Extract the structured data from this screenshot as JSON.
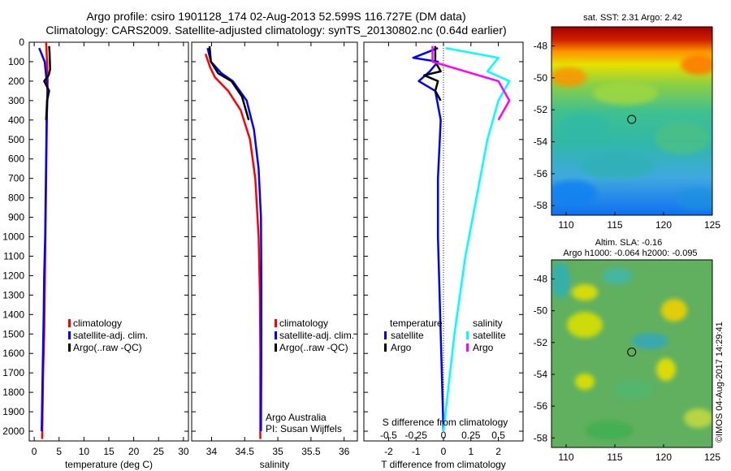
{
  "titles": {
    "line1": "Argo profile: csiro 1901128_174 02-Aug-2013 52.599S 116.727E (DM data)",
    "line2": "Climatology: CARS2009. Satellite-adjusted climatology: synTS_20130802.nc (0.64d earlier)"
  },
  "colors": {
    "climatology": "#ff0000",
    "satellite": "#0000ff",
    "argo": "#000000",
    "argo_salinity_diff": "#ff00ff",
    "satellite_salinity_diff": "#00ffff"
  },
  "chart_data": [
    {
      "type": "line",
      "xlabel": "temperature (deg C)",
      "xlim": [
        -1,
        31
      ],
      "xticks": [
        "0",
        "5",
        "10",
        "15",
        "20",
        "25",
        "30"
      ],
      "ylim": [
        0,
        2050
      ],
      "yticks": [
        "0",
        "100",
        "200",
        "300",
        "400",
        "500",
        "600",
        "700",
        "800",
        "900",
        "1000",
        "1100",
        "1200",
        "1300",
        "1400",
        "1500",
        "1600",
        "1700",
        "1800",
        "1900",
        "2000"
      ],
      "y_inverted": true,
      "legend": [
        "climatology",
        "satellite-adj. clim.",
        "Argo(..raw -QC)"
      ],
      "series": [
        {
          "name": "climatology",
          "x": [
            2.4,
            2.5,
            2.7,
            2.6,
            2.5,
            2.4,
            2.3,
            2.2,
            2.1,
            2.0,
            1.8,
            1.6
          ],
          "y": [
            0,
            50,
            200,
            300,
            500,
            700,
            900,
            1100,
            1300,
            1500,
            1700,
            2040
          ]
        },
        {
          "name": "satellite-adj. clim.",
          "x": [
            1.0,
            2.1,
            2.7,
            2.5,
            2.4,
            2.3,
            2.2,
            2.0,
            1.9,
            1.7,
            1.5
          ],
          "y": [
            30,
            100,
            250,
            400,
            600,
            800,
            1000,
            1200,
            1400,
            1700,
            2000
          ]
        },
        {
          "name": "Argo(..raw -QC)",
          "x": [
            3.0,
            3.1,
            3.2,
            2.9,
            2.0,
            3.0,
            2.6,
            2.4
          ],
          "y": [
            20,
            60,
            140,
            170,
            200,
            250,
            300,
            400
          ]
        }
      ]
    },
    {
      "type": "line",
      "xlabel": "salinity",
      "xlim": [
        33.7,
        36.2
      ],
      "xticks": [
        "34",
        "34.5",
        "35",
        "35.5",
        "36"
      ],
      "ylim": [
        0,
        2050
      ],
      "y_inverted": true,
      "legend": [
        "climatology",
        "satellite-adj. clim.",
        "Argo(..raw -QC)"
      ],
      "annotation": [
        "Argo Australia",
        "PI: Susan Wijffels"
      ],
      "series": [
        {
          "name": "climatology",
          "x": [
            33.91,
            33.98,
            34.05,
            34.25,
            34.44,
            34.58,
            34.66,
            34.71,
            34.73,
            34.735,
            34.735
          ],
          "y": [
            60,
            130,
            180,
            250,
            350,
            500,
            700,
            1000,
            1300,
            1600,
            2040
          ]
        },
        {
          "name": "satellite-adj. clim.",
          "x": [
            33.94,
            33.99,
            34.15,
            34.32,
            34.53,
            34.64,
            34.71,
            34.745,
            34.75,
            34.75,
            34.745
          ],
          "y": [
            30,
            100,
            160,
            200,
            300,
            450,
            650,
            900,
            1200,
            1600,
            2000
          ]
        },
        {
          "name": "Argo(..raw -QC)",
          "x": [
            33.97,
            33.99,
            34.1,
            34.3,
            34.46,
            34.56
          ],
          "y": [
            20,
            100,
            160,
            200,
            280,
            400
          ]
        }
      ]
    },
    {
      "type": "line",
      "xlabel": "T difference from climatology",
      "xlabel_top": "S difference from climatology",
      "xlim": [
        -2.9,
        2.9
      ],
      "xticks": [
        "-2",
        "-1",
        "0",
        "1",
        "2"
      ],
      "xticks_top": [
        "-0.5",
        "-0.25",
        "0",
        "0.25",
        "0.5"
      ],
      "ylim": [
        0,
        2050
      ],
      "y_inverted": true,
      "legend": {
        "temperature_heading": "temperature",
        "salinity_heading": "salinity",
        "temperature": [
          "satellite",
          "Argo"
        ],
        "salinity": [
          "satellite",
          "Argo"
        ]
      },
      "series": [
        {
          "name": "satellite",
          "group": "temperature",
          "x": [
            -0.2,
            -1.1,
            -0.2,
            -0.5,
            -0.9,
            -0.3,
            -0.1,
            -0.2,
            -0.2,
            -0.1,
            0.0
          ],
          "y": [
            30,
            80,
            100,
            150,
            200,
            250,
            400,
            700,
            1000,
            1500,
            2000
          ]
        },
        {
          "name": "Argo",
          "group": "temperature",
          "x": [
            -0.3,
            -0.3,
            -0.1,
            -0.7,
            -0.2,
            -0.3,
            -0.1
          ],
          "y": [
            20,
            100,
            150,
            170,
            200,
            250,
            300
          ]
        },
        {
          "name": "satellite",
          "group": "salinity",
          "x": [
            0.02,
            0.5,
            0.4,
            0.6,
            0.5,
            0.4,
            0.3,
            0.2,
            0.1,
            0.0
          ],
          "y": [
            30,
            80,
            150,
            200,
            300,
            500,
            800,
            1100,
            1500,
            2000
          ]
        },
        {
          "name": "Argo",
          "group": "salinity",
          "x": [
            -0.1,
            -0.1,
            0.2,
            0.5,
            0.6,
            0.5
          ],
          "y": [
            20,
            100,
            150,
            200,
            300,
            400
          ]
        }
      ]
    },
    {
      "type": "heatmap",
      "title": "sat. SST: 2.31  Argo: 2.42",
      "xlim": [
        108.5,
        125
      ],
      "ylim": [
        -58.6,
        -46.8
      ],
      "xticks": [
        "110",
        "115",
        "120",
        "125"
      ],
      "yticks": [
        "-48",
        "-50",
        "-52",
        "-54",
        "-56",
        "-58"
      ],
      "marker": {
        "x": 116.727,
        "y": -52.599
      }
    },
    {
      "type": "heatmap",
      "title": "Altim. SLA: -0.16",
      "subtitle": "Argo h1000: -0.064 h2000: -0.095",
      "xlim": [
        108.5,
        125
      ],
      "ylim": [
        -58.6,
        -46.8
      ],
      "xticks": [
        "110",
        "115",
        "120",
        "125"
      ],
      "yticks": [
        "-48",
        "-50",
        "-52",
        "-54",
        "-56",
        "-58"
      ],
      "marker": {
        "x": 116.727,
        "y": -52.599
      }
    }
  ],
  "credit": "©IMOS 04-Aug-2017 14:29:41"
}
